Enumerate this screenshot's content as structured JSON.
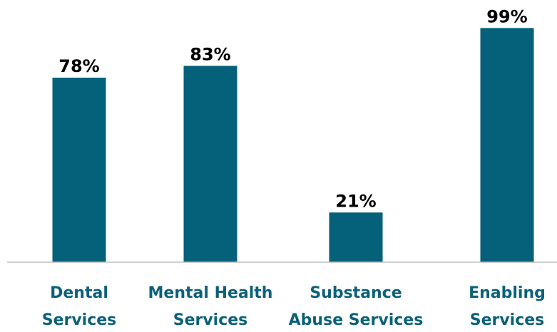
{
  "chart_data": {
    "type": "bar",
    "title": "",
    "xlabel": "",
    "ylabel": "",
    "categories": [
      [
        "Dental",
        "Services"
      ],
      [
        "Mental Health",
        "Services"
      ],
      [
        "Substance",
        "Abuse Services"
      ],
      [
        "Enabling",
        "Services"
      ]
    ],
    "values": [
      78,
      83,
      21,
      99
    ],
    "value_labels": [
      "78%",
      "83%",
      "21%",
      "99%"
    ],
    "ylim": [
      0,
      100
    ],
    "grid": false,
    "legend": "none",
    "colors": {
      "bar": "#056179",
      "category_text": "#0b6178",
      "value_text": "#000000",
      "axis": "#bfbfbf"
    }
  }
}
